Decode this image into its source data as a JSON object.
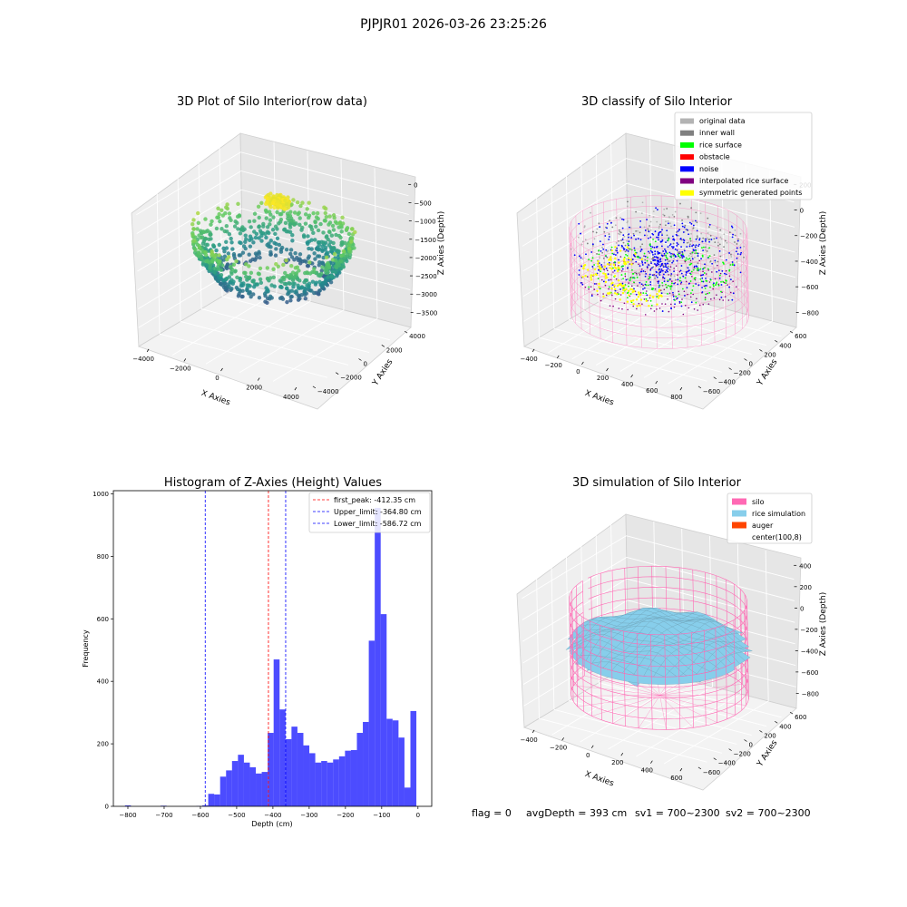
{
  "figure": {
    "suptitle": "PJPJR01 2026-03-26 23:25:26"
  },
  "footer": {
    "flag": "flag = 0",
    "avg_depth": "avgDepth = 393 cm",
    "sv1": "sv1 = 700~2300",
    "sv2": "sv2 = 700~2300"
  },
  "chart_data": [
    {
      "type": "scatter",
      "projection": "3d",
      "title": "3D Plot of Silo Interior(row data)",
      "xlabel": "X Axies",
      "ylabel": "Y Axies",
      "zlabel": "Z Axies (Depth)",
      "x_ticks": [
        "−4000",
        "−2000",
        "0",
        "2000",
        "4000"
      ],
      "y_ticks": [
        "−4000",
        "−2000",
        "0",
        "2000",
        "4000"
      ],
      "z_ticks": [
        "0",
        "−500",
        "−1000",
        "−1500",
        "−2000",
        "−2500",
        "−3000",
        "−3500"
      ],
      "xlim": [
        -4500,
        4500
      ],
      "ylim": [
        -4500,
        4500
      ],
      "zlim": [
        -3800,
        100
      ],
      "colormap": "viridis",
      "description_values": {
        "bowl_radius": 4000,
        "top_cluster_depth": -400,
        "bottom_depth": -3600
      }
    },
    {
      "type": "scatter",
      "projection": "3d",
      "title": "3D classify of Silo Interior",
      "xlabel": "X Axies",
      "ylabel": "Y Axies",
      "zlabel": "Z Axies (Depth)",
      "x_ticks": [
        "−400",
        "−200",
        "0",
        "200",
        "400",
        "600",
        "800"
      ],
      "y_ticks": [
        "−600",
        "−400",
        "−200",
        "0",
        "200",
        "400",
        "600"
      ],
      "z_ticks": [
        "200",
        "0",
        "−200",
        "−400",
        "−600",
        "−800"
      ],
      "z_ticks_partial": "00",
      "legend_position": "top-right",
      "legend": [
        {
          "label": "original data",
          "color": "#b3b3b3"
        },
        {
          "label": "inner wall",
          "color": "#808080"
        },
        {
          "label": "rice surface",
          "color": "#00ff00"
        },
        {
          "label": "obstacle",
          "color": "#ff0000"
        },
        {
          "label": "noise",
          "color": "#0000ff"
        },
        {
          "label": "interpolated rice surface",
          "color": "#800080"
        },
        {
          "label": "symmetric generated points",
          "color": "#ffff00"
        }
      ],
      "silo_color": "#ff69b4"
    },
    {
      "type": "bar",
      "title": "Histogram of Z-Axies (Height) Values",
      "xlabel": "Depth (cm)",
      "ylabel": "Frequency",
      "xlim": [
        -840,
        38
      ],
      "ylim": [
        0,
        1010
      ],
      "x_ticks": [
        {
          "value": -800,
          "label": "−800"
        },
        {
          "value": -700,
          "label": "−700"
        },
        {
          "value": -600,
          "label": "−600"
        },
        {
          "value": -500,
          "label": "−500"
        },
        {
          "value": -400,
          "label": "−400"
        },
        {
          "value": -300,
          "label": "−300"
        },
        {
          "value": -200,
          "label": "−200"
        },
        {
          "value": -100,
          "label": "−100"
        },
        {
          "value": 0,
          "label": "0"
        }
      ],
      "y_ticks": [
        {
          "value": 0,
          "label": "0"
        },
        {
          "value": 200,
          "label": "200"
        },
        {
          "value": 400,
          "label": "400"
        },
        {
          "value": 600,
          "label": "600"
        },
        {
          "value": 800,
          "label": "800"
        },
        {
          "value": 1000,
          "label": "1000"
        }
      ],
      "bar_color": "#0000ff",
      "bin_width": 16.4,
      "bin_start": -808,
      "values": [
        3,
        0,
        0,
        0,
        0,
        0,
        2,
        0,
        0,
        0,
        0,
        0,
        1,
        3,
        40,
        38,
        95,
        115,
        145,
        165,
        140,
        125,
        105,
        110,
        235,
        470,
        310,
        215,
        255,
        235,
        195,
        170,
        140,
        145,
        140,
        150,
        160,
        178,
        180,
        235,
        270,
        530,
        955,
        615,
        280,
        275,
        220,
        60,
        305
      ],
      "reference_lines": [
        {
          "label": "first_peak: -412.35 cm",
          "x": -412.35,
          "color": "#ff0000"
        },
        {
          "label": "Upper_limit: -364.80 cm",
          "x": -364.8,
          "color": "#0000ff"
        },
        {
          "label": "Lower_limit: -586.72 cm",
          "x": -586.72,
          "color": "#0000ff"
        }
      ],
      "legend_position": "top-right"
    },
    {
      "type": "surface",
      "projection": "3d",
      "title": "3D simulation of Silo Interior",
      "xlabel": "X Axies",
      "ylabel": "Y Axies",
      "zlabel": "Z Axies (Depth)",
      "x_ticks": [
        "−400",
        "−200",
        "0",
        "200",
        "400",
        "600"
      ],
      "y_ticks": [
        "−600",
        "−400",
        "−200",
        "0",
        "200",
        "400",
        "600"
      ],
      "z_ticks": [
        "400",
        "200",
        "0",
        "−200",
        "−400",
        "−600",
        "−800"
      ],
      "legend_position": "top-right",
      "legend": [
        {
          "label": "silo",
          "color": "#ff69b4"
        },
        {
          "label": "rice simulation",
          "color": "#87ceeb"
        },
        {
          "label": "auger",
          "color": "#ff4500"
        },
        {
          "label": "center(100,8)",
          "color": "none"
        }
      ]
    }
  ]
}
